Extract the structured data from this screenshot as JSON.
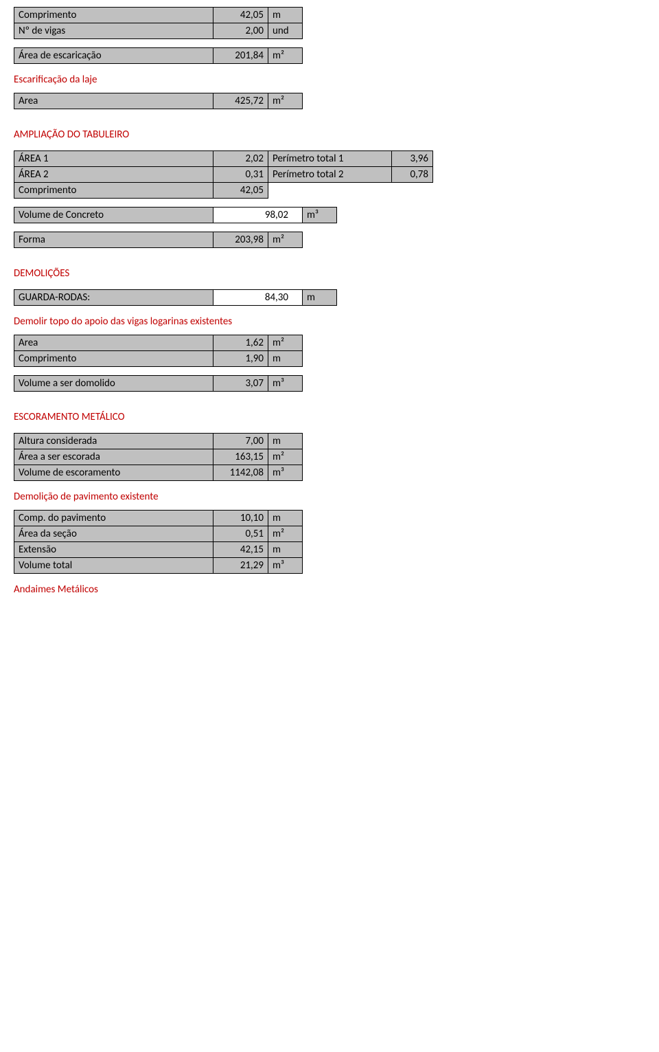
{
  "top_table": {
    "rows": [
      {
        "label": "Comprimento",
        "value": "42,05",
        "unit": "m"
      },
      {
        "label": "Nº de vigas",
        "value": "2,00",
        "unit": "und"
      }
    ]
  },
  "area_escaricacao": {
    "label": "Área de escaricação",
    "value": "201,84",
    "unit": "m²"
  },
  "escarificacao_heading": "Escarificação da laje",
  "escarificacao_row": {
    "label": "Area",
    "value": "425,72",
    "unit": "m²"
  },
  "ampliacao_heading": "AMPLIAÇÃO DO TABULEIRO",
  "ampliacao_rows": [
    {
      "label": "ÁREA 1",
      "value": "2,02",
      "extra_label": "Perímetro total 1",
      "extra_value": "3,96"
    },
    {
      "label": "ÁREA 2",
      "value": "0,31",
      "extra_label": "Perímetro total 2",
      "extra_value": "0,78"
    },
    {
      "label": "Comprimento",
      "value": "42,05",
      "extra_label": "",
      "extra_value": ""
    }
  ],
  "volume_concreto": {
    "label": "Volume de Concreto",
    "value": "98,02",
    "unit": "m³"
  },
  "forma": {
    "label": "Forma",
    "value": "203,98",
    "unit": "m²"
  },
  "demolicoes_heading": "DEMOLIÇÕES",
  "guarda_rodas": {
    "label": "GUARDA-RODAS:",
    "value": "84,30",
    "unit": "m"
  },
  "demolir_heading": "Demolir topo do apoio das vigas logarinas existentes",
  "demolir_rows": [
    {
      "label": "Area",
      "value": "1,62",
      "unit": "m²"
    },
    {
      "label": "Comprimento",
      "value": "1,90",
      "unit": "m"
    }
  ],
  "volume_demolido": {
    "label": "Volume a ser domolido",
    "value": "3,07",
    "unit": "m³"
  },
  "escoramento_heading": "ESCORAMENTO METÁLICO",
  "escoramento_rows": [
    {
      "label": "Altura considerada",
      "value": "7,00",
      "unit": "m"
    },
    {
      "label": "Área a ser escorada",
      "value": "163,15",
      "unit": "m²"
    },
    {
      "label": "Volume de escoramento",
      "value": "1142,08",
      "unit": "m³"
    }
  ],
  "demolicao_pav_heading": "Demolição de pavimento existente",
  "pavimento_rows": [
    {
      "label": "Comp. do pavimento",
      "value": "10,10",
      "unit": "m"
    },
    {
      "label": "Área da seção",
      "value": "0,51",
      "unit": "m²"
    },
    {
      "label": "Extensão",
      "value": "42,15",
      "unit": "m"
    },
    {
      "label": "Volume total",
      "value": "21,29",
      "unit": "m³"
    }
  ],
  "andaimes_heading": "Andaimes Metálicos"
}
